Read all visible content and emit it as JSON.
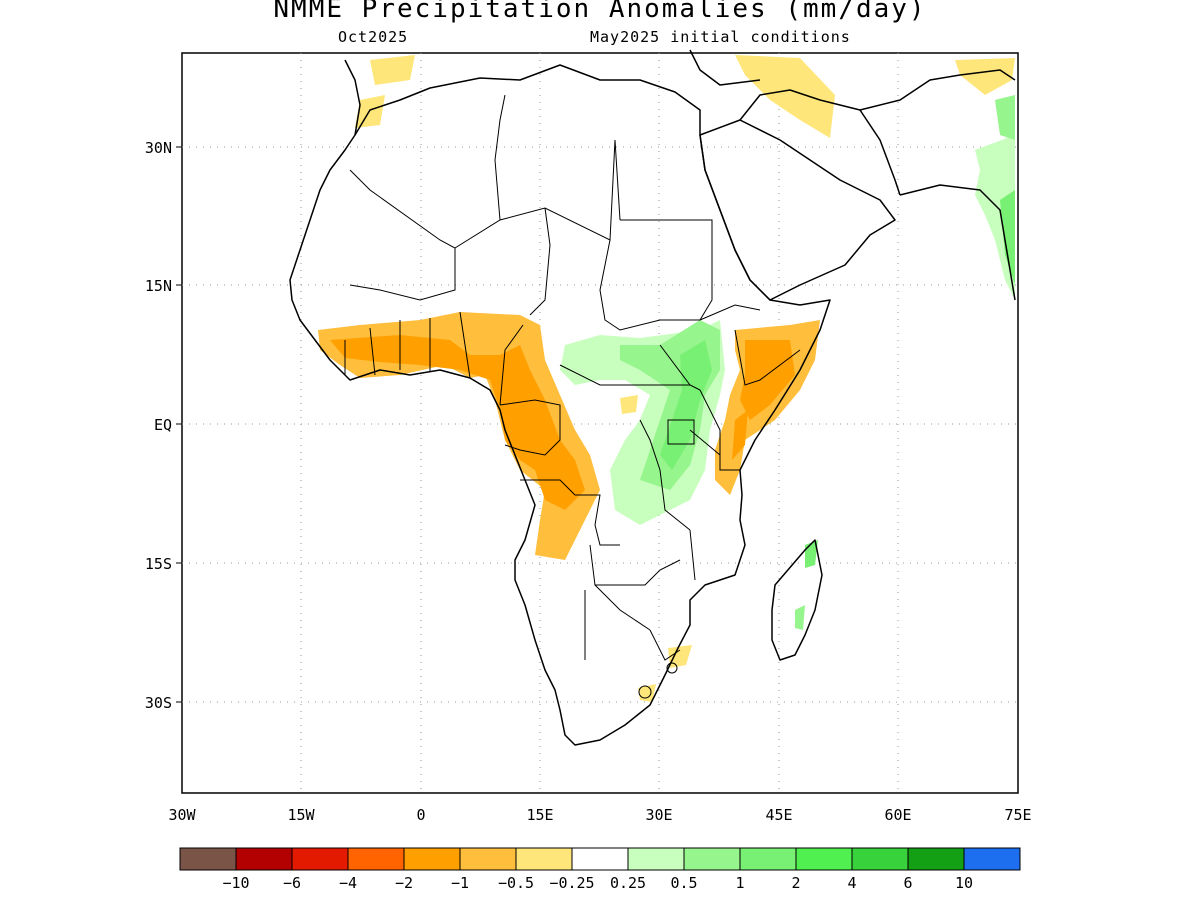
{
  "title": "NMME Precipitation Anomalies (mm/day)",
  "subtitle_left": "Oct2025",
  "subtitle_right": "May2025 initial conditions",
  "lat_labels": [
    "30N",
    "15N",
    "EQ",
    "15S",
    "30S"
  ],
  "lon_labels": [
    "30W",
    "15W",
    "0",
    "15E",
    "30E",
    "45E",
    "60E",
    "75E"
  ],
  "colorbar": {
    "colors": [
      "#7a5547",
      "#b30000",
      "#e31a00",
      "#ff6400",
      "#ffa000",
      "#ffbe3c",
      "#ffe67a",
      "#ffffff",
      "#c8ffbe",
      "#96f58c",
      "#78f073",
      "#50f050",
      "#37d23c",
      "#14a014",
      "#1e6ef0"
    ],
    "labels": [
      "−10",
      "−6",
      "−4",
      "−2",
      "−1",
      "−0.5",
      "−0.25",
      "0.25",
      "0.5",
      "1",
      "2",
      "4",
      "6",
      "10"
    ]
  }
}
